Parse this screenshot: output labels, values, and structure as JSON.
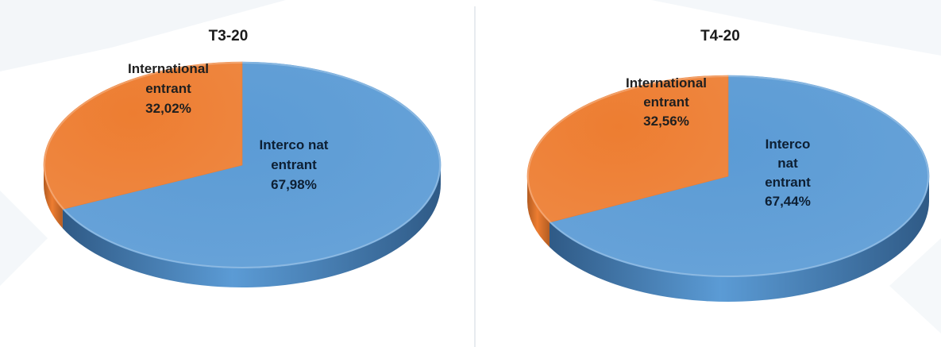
{
  "colors": {
    "interco": "#5b9bd5",
    "interco_dark": "#2f5a86",
    "international": "#ed7d31",
    "international_dark": "#b35c22",
    "label_on_orange": "#1f1f1f",
    "label_on_blue": "#0d1f33"
  },
  "chart_data": [
    {
      "type": "pie",
      "title": "T3-20",
      "slices": [
        {
          "label_lines": [
            "Interco nat",
            "entrant",
            "67,98%"
          ],
          "value": 67.98,
          "color": "#5b9bd5"
        },
        {
          "label_lines": [
            "International",
            "entrant",
            "32,02%"
          ],
          "value": 32.02,
          "color": "#ed7d31"
        }
      ]
    },
    {
      "type": "pie",
      "title": "T4-20",
      "slices": [
        {
          "label_lines": [
            "Interco",
            "nat",
            "entrant",
            "67,44%"
          ],
          "value": 67.44,
          "color": "#5b9bd5"
        },
        {
          "label_lines": [
            "International",
            "entrant",
            "32,56%"
          ],
          "value": 32.56,
          "color": "#ed7d31"
        }
      ]
    }
  ]
}
